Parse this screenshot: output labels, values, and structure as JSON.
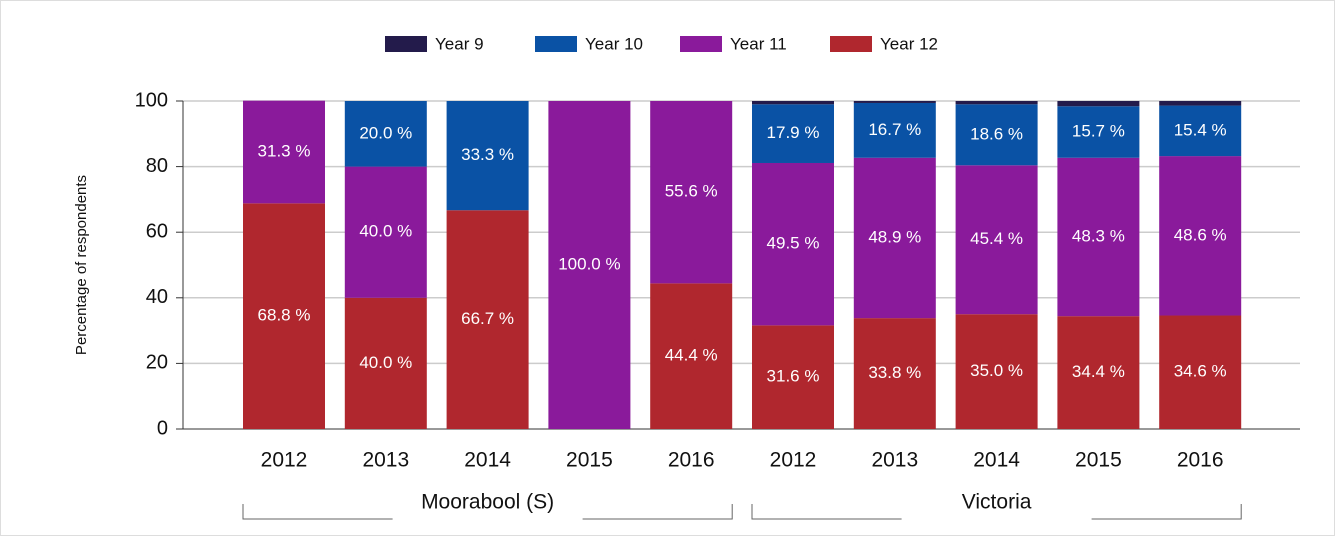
{
  "chart_data": {
    "type": "stacked-bar",
    "y_label": "Percentage of respondents",
    "groups": [
      {
        "name": "Moorabool (S)",
        "categories": [
          "2012",
          "2013",
          "2014",
          "2015",
          "2016"
        ]
      },
      {
        "name": "Victoria",
        "categories": [
          "2012",
          "2013",
          "2014",
          "2015",
          "2016"
        ]
      }
    ],
    "series": [
      {
        "name": "Year 12",
        "color": "#b0272e",
        "values": [
          68.8,
          40.0,
          66.7,
          0,
          44.4,
          31.6,
          33.8,
          35.0,
          34.4,
          34.6
        ],
        "value_labels": [
          "68.8 %",
          "40.0 %",
          "66.7 %",
          null,
          "44.4 %",
          "31.6 %",
          "33.8 %",
          "35.0 %",
          "34.4 %",
          "34.6 %"
        ]
      },
      {
        "name": "Year 11",
        "color": "#8a1a9b",
        "values": [
          31.3,
          40.0,
          0,
          100.0,
          55.6,
          49.5,
          48.9,
          45.4,
          48.3,
          48.6
        ],
        "value_labels": [
          "31.3 %",
          "40.0 %",
          null,
          "100.0 %",
          "55.6 %",
          "49.5 %",
          "48.9 %",
          "45.4 %",
          "48.3 %",
          "48.6 %"
        ]
      },
      {
        "name": "Year 10",
        "color": "#0a52a5",
        "values": [
          0,
          20.0,
          33.3,
          0,
          0,
          17.9,
          16.7,
          18.6,
          15.7,
          15.4
        ],
        "value_labels": [
          null,
          "20.0 %",
          "33.3 %",
          null,
          null,
          "17.9 %",
          "16.7 %",
          "18.6 %",
          "15.7 %",
          "15.4 %"
        ]
      },
      {
        "name": "Year 9",
        "color": "#231b4b",
        "values": [
          0,
          0,
          0,
          0,
          0,
          1.0,
          0.6,
          1.0,
          1.6,
          1.4
        ]
      }
    ],
    "legend_order": [
      3,
      2,
      1,
      0
    ],
    "ylim": [
      0,
      100
    ],
    "yticks": [
      0,
      20,
      40,
      60,
      80,
      100
    ],
    "grid": true
  }
}
